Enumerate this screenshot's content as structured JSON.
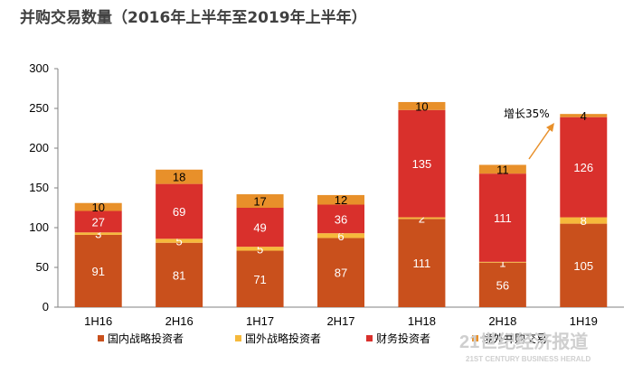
{
  "chart_data": {
    "type": "bar",
    "stacked": true,
    "title": "并购交易数量（2016年上半年至2019年上半年）",
    "categories": [
      "1H16",
      "2H16",
      "1H17",
      "2H17",
      "1H18",
      "2H18",
      "1H19"
    ],
    "ylim": [
      0,
      300
    ],
    "yticks": [
      "0",
      "50",
      "100",
      "150",
      "200",
      "250",
      "300"
    ],
    "ytick_values": [
      0,
      50,
      100,
      150,
      200,
      250,
      300
    ],
    "series": [
      {
        "name": "国内战略投资者",
        "color": "#c9501c",
        "label_color": "#ffffff",
        "values": [
          91,
          81,
          71,
          87,
          111,
          56,
          105
        ]
      },
      {
        "name": "国外战略投资者",
        "color": "#f6b93b",
        "label_color": "#ffffff",
        "values": [
          3,
          5,
          5,
          6,
          2,
          1,
          8
        ]
      },
      {
        "name": "财务投资者",
        "color": "#d9302c",
        "label_color": "#ffffff",
        "values": [
          27,
          69,
          49,
          36,
          135,
          111,
          126
        ]
      },
      {
        "name": "境外并购交易",
        "color": "#e8902a",
        "label_color": "#000000",
        "values": [
          10,
          18,
          17,
          12,
          10,
          11,
          4
        ]
      }
    ],
    "annotation": {
      "text": "增长35%",
      "category": "1H19"
    },
    "legend_position": "bottom"
  },
  "watermark": {
    "main": "21世纪经济报道",
    "sub": "21ST CENTURY BUSINESS HERALD"
  }
}
